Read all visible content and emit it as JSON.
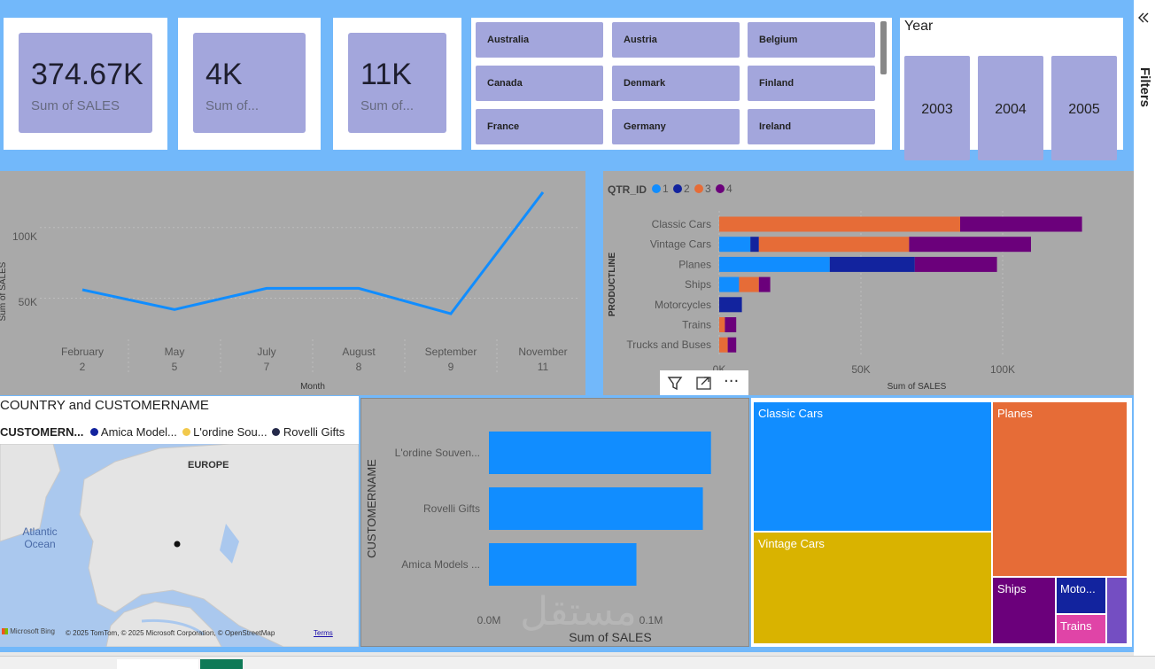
{
  "kpis": [
    {
      "value": "374.67K",
      "label": "Sum of SALES"
    },
    {
      "value": "4K",
      "label": "Sum of..."
    },
    {
      "value": "11K",
      "label": "Sum of..."
    }
  ],
  "country_slicer": {
    "items": [
      "Australia",
      "Austria",
      "Belgium",
      "Canada",
      "Denmark",
      "Finland",
      "France",
      "Germany",
      "Ireland"
    ]
  },
  "year_slicer": {
    "title": "Year",
    "items": [
      "2003",
      "2004",
      "2005"
    ]
  },
  "right_pane": {
    "label": "Filters",
    "collapse_icon": "chevrons-left-icon"
  },
  "line_chart": {
    "xlabel": "Month",
    "ylabel": "Sum of SALES",
    "ticks": [
      "100K",
      "50K"
    ]
  },
  "bar_qtr": {
    "legend_title": "QTR_ID",
    "ylabel": "PRODUCTLINE",
    "xlabel": "Sum of SALES",
    "xticks": [
      "0K",
      "50K",
      "100K"
    ]
  },
  "visual_header": {
    "icons": [
      "filter-icon",
      "focus-mode-icon",
      "more-options-icon"
    ],
    "more": "···"
  },
  "map": {
    "title": "COUNTRY and CUSTOMERNAME",
    "legend_title": "CUSTOMERN...",
    "region_label": "EUROPE",
    "ocean_label": "Atlantic Ocean",
    "bing": "Microsoft Bing",
    "copyright": "© 2025 TomTom, © 2025 Microsoft Corporation, © OpenStreetMap",
    "terms": "Terms",
    "legend": [
      {
        "name": "Amica Model...",
        "color": "#12239e"
      },
      {
        "name": "L'ordine Sou...",
        "color": "#f2c94c"
      },
      {
        "name": "Rovelli Gifts",
        "color": "#252a4a"
      }
    ]
  },
  "customer_bar": {
    "ylabel": "CUSTOMERNAME",
    "xlabel": "Sum of SALES",
    "xticks": [
      "0.0M",
      "0.1M"
    ],
    "watermark": "مستقل"
  },
  "treemap": {
    "items": [
      {
        "label": "Classic Cars",
        "color": "#118dff"
      },
      {
        "label": "Planes",
        "color": "#e66c37"
      },
      {
        "label": "Vintage Cars",
        "color": "#d9b300"
      },
      {
        "label": "Ships",
        "color": "#6b007b"
      },
      {
        "label": "Moto...",
        "color": "#12239e"
      },
      {
        "label": "Trains",
        "color": "#e044a7"
      },
      {
        "label": "",
        "color": "#744ec2"
      }
    ]
  },
  "chart_data": [
    {
      "type": "line",
      "x": [
        [
          "February",
          "2"
        ],
        [
          "May",
          "5"
        ],
        [
          "July",
          "7"
        ],
        [
          "August",
          "8"
        ],
        [
          "September",
          "9"
        ],
        [
          "November",
          "11"
        ]
      ],
      "y": [
        56000,
        42000,
        57000,
        57000,
        39000,
        125000
      ],
      "xlabel": "Month",
      "ylabel": "Sum of SALES",
      "ylim": [
        0,
        140000
      ],
      "yticks": [
        50000,
        100000
      ],
      "color": "#118dff"
    },
    {
      "type": "bar",
      "orientation": "horizontal",
      "stacked": true,
      "categories": [
        "Classic Cars",
        "Vintage Cars",
        "Planes",
        "Ships",
        "Motorcycles",
        "Trains",
        "Trucks and Buses"
      ],
      "series": [
        {
          "name": "1",
          "color": "#118dff",
          "values": [
            0,
            11000,
            39000,
            7000,
            0,
            0,
            0
          ]
        },
        {
          "name": "2",
          "color": "#12239e",
          "values": [
            0,
            3000,
            30000,
            0,
            8000,
            0,
            0
          ]
        },
        {
          "name": "3",
          "color": "#e66c37",
          "values": [
            85000,
            53000,
            0,
            7000,
            0,
            2000,
            3000
          ]
        },
        {
          "name": "4",
          "color": "#6b007b",
          "values": [
            43000,
            43000,
            29000,
            4000,
            0,
            4000,
            3000
          ]
        }
      ],
      "xlabel": "Sum of SALES",
      "ylabel": "PRODUCTLINE",
      "xlim": [
        0,
        140000
      ],
      "xticks": [
        0,
        50000,
        100000
      ],
      "legend_title": "QTR_ID",
      "legend_position": "top-left"
    },
    {
      "type": "bar",
      "orientation": "horizontal",
      "categories": [
        "L'ordine Souven...",
        "Rovelli Gifts",
        "Amica Models ..."
      ],
      "values": [
        0.137,
        0.132,
        0.091
      ],
      "xlabel": "Sum of SALES",
      "ylabel": "CUSTOMERNAME",
      "xticks": [
        "0.0M",
        "0.1M"
      ],
      "color": "#118dff"
    },
    {
      "type": "treemap",
      "categories": [
        "Classic Cars",
        "Planes",
        "Vintage Cars",
        "Ships",
        "Motorcycles",
        "Trains",
        "Trucks and Buses"
      ]
    }
  ]
}
